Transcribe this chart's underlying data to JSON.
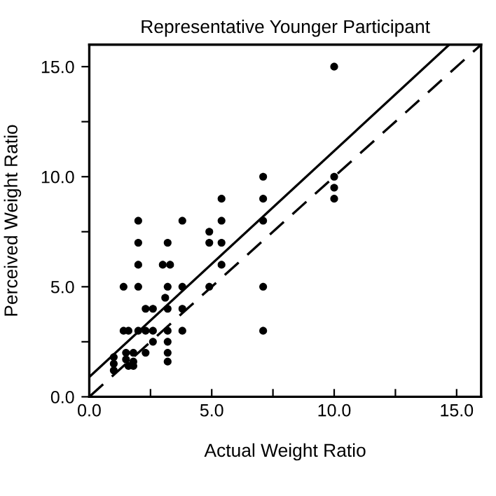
{
  "chart_data": {
    "type": "scatter",
    "title": "Representative Younger Participant",
    "xlabel": "Actual Weight Ratio",
    "ylabel": "Perceived Weight Ratio",
    "xlim": [
      0,
      16
    ],
    "ylim": [
      0,
      16
    ],
    "xticks": [
      {
        "value": 0,
        "label": "0.0"
      },
      {
        "value": 2.5,
        "label": null
      },
      {
        "value": 5,
        "label": "5.0"
      },
      {
        "value": 7.5,
        "label": null
      },
      {
        "value": 10,
        "label": "10.0"
      },
      {
        "value": 12.5,
        "label": null
      },
      {
        "value": 15,
        "label": "15.0"
      }
    ],
    "yticks": [
      {
        "value": 0,
        "label": "0.0"
      },
      {
        "value": 2.5,
        "label": null
      },
      {
        "value": 5,
        "label": "5.0"
      },
      {
        "value": 7.5,
        "label": null
      },
      {
        "value": 10,
        "label": "10.0"
      },
      {
        "value": 12.5,
        "label": null
      },
      {
        "value": 15,
        "label": "15.0"
      }
    ],
    "grid": false,
    "legend": false,
    "series": [
      {
        "color": "#000000",
        "marker": "circle",
        "x": [
          1.0,
          1.0,
          1.0,
          1.5,
          1.8,
          1.5,
          1.8,
          1.6,
          1.8,
          1.4,
          1.6,
          2.0,
          2.3,
          2.6,
          3.2,
          3.8,
          2.3,
          2.6,
          3.2,
          3.8,
          1.4,
          2.0,
          3.2,
          3.8,
          4.9,
          7.1,
          3.1,
          2.0,
          3.0,
          3.3,
          5.4,
          2.0,
          3.2,
          4.9,
          5.4,
          2.0,
          3.8,
          5.4,
          7.1,
          4.9,
          5.4,
          7.1,
          7.1,
          2.6,
          3.2,
          2.3,
          3.2,
          3.2,
          10.0,
          10.0,
          10.0,
          10.0,
          7.1
        ],
        "values": [
          1.8,
          1.5,
          1.2,
          2.0,
          2.0,
          1.7,
          1.6,
          1.4,
          1.4,
          3.0,
          3.0,
          3.0,
          3.0,
          3.0,
          3.0,
          3.0,
          4.0,
          4.0,
          4.0,
          4.0,
          5.0,
          5.0,
          5.0,
          5.0,
          5.0,
          5.0,
          4.5,
          6.0,
          6.0,
          6.0,
          6.0,
          7.0,
          7.0,
          7.0,
          7.0,
          8.0,
          8.0,
          8.0,
          8.0,
          7.5,
          9.0,
          9.0,
          10.0,
          2.5,
          2.5,
          2.0,
          2.0,
          1.6,
          15.0,
          10.0,
          9.5,
          9.0,
          3.0
        ]
      },
      {
        "type": "line",
        "color": "#000000",
        "line_style": "solid",
        "marker": "none",
        "x": [
          0,
          14.7
        ],
        "values": [
          0.9,
          16
        ]
      },
      {
        "type": "line",
        "color": "#000000",
        "line_style": "dashed",
        "marker": "none",
        "x": [
          0,
          16
        ],
        "values": [
          0,
          16
        ]
      }
    ]
  }
}
